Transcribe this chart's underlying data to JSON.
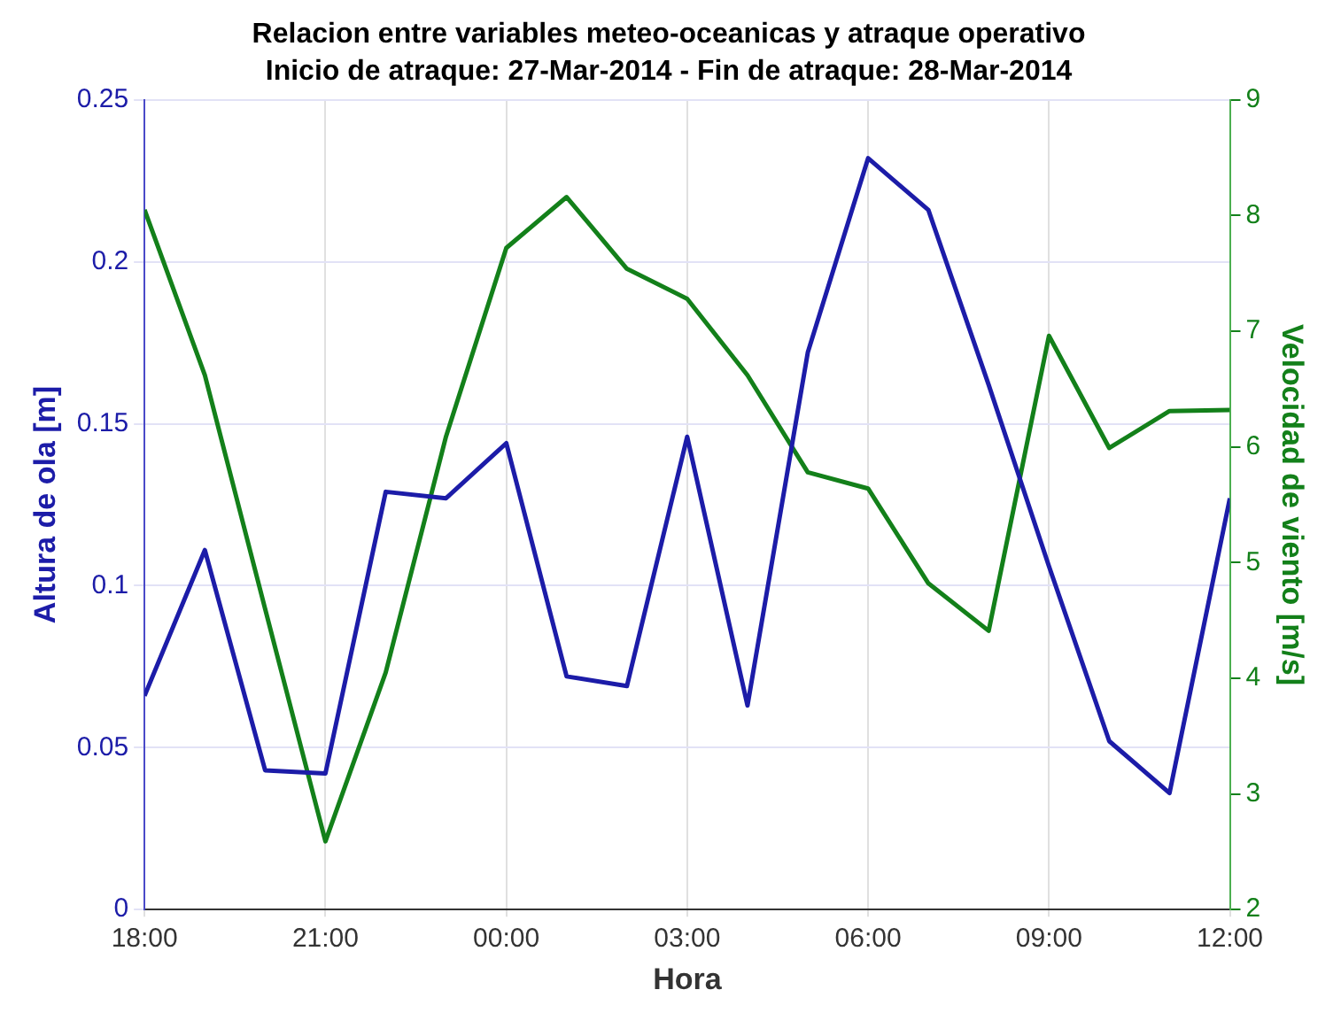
{
  "chart_data": {
    "type": "line",
    "title": "Relacion entre variables meteo-oceanicas y atraque operativo",
    "subtitle": "Inicio de atraque: 27-Mar-2014 - Fin de atraque: 28-Mar-2014",
    "xlabel": "Hora",
    "ylabel": "Altura de ola [m]",
    "y2label": "Velocidad de viento [m/s]",
    "x": [
      "2014-03-27T18:00",
      "2014-03-27T19:00",
      "2014-03-27T20:00",
      "2014-03-27T21:00",
      "2014-03-27T22:00",
      "2014-03-27T23:00",
      "2014-03-28T00:00",
      "2014-03-28T01:00",
      "2014-03-28T02:00",
      "2014-03-28T03:00",
      "2014-03-28T04:00",
      "2014-03-28T05:00",
      "2014-03-28T06:00",
      "2014-03-28T07:00",
      "2014-03-28T08:00",
      "2014-03-28T09:00",
      "2014-03-28T10:00",
      "2014-03-28T11:00",
      "2014-03-28T12:00"
    ],
    "xlim": [
      "2014-03-27T18:00",
      "2014-03-28T12:00"
    ],
    "xticks": [
      {
        "value": "2014-03-27T18:00",
        "label": "18:00"
      },
      {
        "value": "2014-03-27T21:00",
        "label": "21:00"
      },
      {
        "value": "2014-03-28T00:00",
        "label": "00:00"
      },
      {
        "value": "2014-03-28T03:00",
        "label": "03:00"
      },
      {
        "value": "2014-03-28T06:00",
        "label": "06:00"
      },
      {
        "value": "2014-03-28T09:00",
        "label": "09:00"
      },
      {
        "value": "2014-03-28T12:00",
        "label": "12:00"
      }
    ],
    "ylim": [
      0,
      0.25
    ],
    "yticks": [
      0,
      0.05,
      0.1,
      0.15,
      0.2,
      0.25
    ],
    "y2lim": [
      2,
      9
    ],
    "y2ticks": [
      2,
      3,
      4,
      5,
      6,
      7,
      8,
      9
    ],
    "series": [
      {
        "color": "#1c1ca8",
        "values": [
          0.066,
          0.111,
          0.043,
          0.042,
          0.129,
          0.127,
          0.144,
          0.072,
          0.069,
          0.146,
          0.063,
          0.172,
          0.232,
          0.216,
          0.162,
          0.106,
          0.052,
          0.036,
          0.127
        ]
      },
      {
        "color": "#13801a",
        "axis": "y2",
        "values": [
          8.05,
          6.62,
          4.6,
          2.59,
          4.05,
          6.09,
          7.72,
          8.16,
          7.54,
          7.28,
          6.62,
          5.78,
          5.64,
          4.82,
          4.41,
          6.96,
          5.99,
          6.31,
          6.32
        ]
      }
    ],
    "grid": true,
    "legend": false,
    "marker": "none",
    "line_style": "solid"
  }
}
